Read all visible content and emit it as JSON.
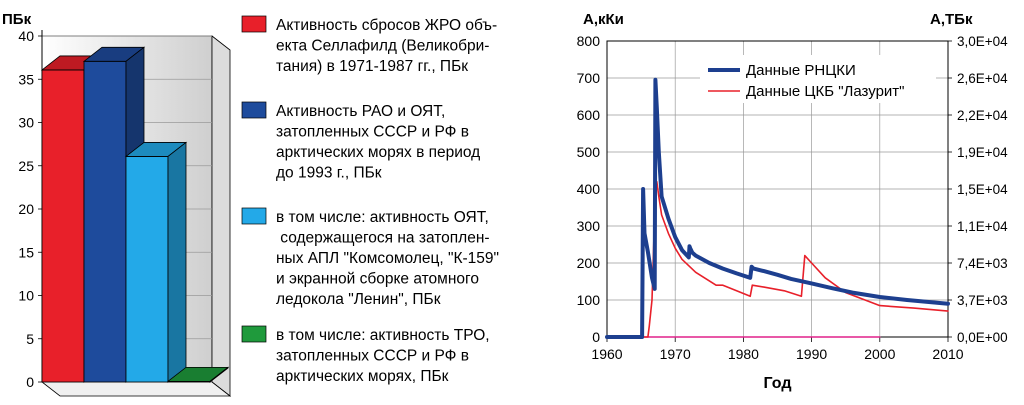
{
  "chart_data": [
    {
      "type": "bar",
      "ylabel": "ПБк",
      "ylim": [
        0,
        40
      ],
      "yticks": [
        0,
        5,
        10,
        15,
        20,
        25,
        30,
        35,
        40
      ],
      "grid": true,
      "legend_position": "right",
      "bars": [
        {
          "value": 37,
          "color": "#e8202a",
          "legend": "Активность сбросов ЖРО объ-\nекта Селлафилд (Великобри-\nтания) в 1971-1987 гг., ПБк"
        },
        {
          "value": 38,
          "color": "#1e4b9c",
          "legend": "Активность РАО и ОЯТ,\nзатопленных  СССР и РФ в\nарктических морях в период\nдо 1993 г., ПБк"
        },
        {
          "value": 27,
          "color": "#23a9e8",
          "legend": "в том числе: активность ОЯТ,\n содержащегося на затоплен-\nных АПЛ \"Комсомолец, \"К-159\"\nи экранной сборке атомного\nледокола \"Ленин\", ПБк"
        },
        {
          "value": 1,
          "color": "#1f9a3c",
          "legend": "в том числе: активность ТРО,\nзатопленных СССР и РФ в\nарктических морях, ПБк"
        }
      ]
    },
    {
      "type": "line",
      "ylabel": "А,кКи",
      "y2label": "А,ТБк",
      "xlabel": "Год",
      "xlim": [
        1960,
        2010
      ],
      "xticks": [
        1960,
        1970,
        1980,
        1990,
        2000,
        2010
      ],
      "ylim": [
        0,
        800
      ],
      "yticks": [
        0,
        100,
        200,
        300,
        400,
        500,
        600,
        700,
        800
      ],
      "y2ticks": [
        "0,0E+00",
        "3,7E+03",
        "7,4E+03",
        "1,1E+04",
        "1,5E+04",
        "1,9E+04",
        "2,2E+04",
        "2,6E+04",
        "3,0E+04"
      ],
      "grid": true,
      "legend_position": "top-right",
      "series": [
        {
          "name": "Данные  РНЦКИ",
          "color": "#1d3f8f",
          "x": [
            1960,
            1965,
            1965.15,
            1965.3,
            1965.5,
            1966,
            1966.6,
            1967,
            1967.1,
            1967.3,
            1967.6,
            1968,
            1969,
            1970,
            1971,
            1972,
            1972.1,
            1972.2,
            1972.5,
            1973,
            1975,
            1977,
            1979,
            1981,
            1981.2,
            1981.5,
            1983,
            1985,
            1987,
            1990,
            1993,
            1996,
            2000,
            2004,
            2007,
            2010
          ],
          "y": [
            0,
            0,
            0,
            400,
            280,
            230,
            160,
            130,
            695,
            620,
            500,
            380,
            320,
            270,
            235,
            215,
            245,
            240,
            228,
            220,
            200,
            185,
            172,
            160,
            190,
            185,
            178,
            168,
            157,
            145,
            132,
            120,
            108,
            100,
            95,
            90
          ]
        },
        {
          "name": "Данные ЦКБ \"Лазурит\"",
          "color": "#e8202a",
          "x": [
            1960,
            1966,
            1966.2,
            1966.6,
            1967.1,
            1967.3,
            1967.6,
            1968,
            1969,
            1970,
            1971,
            1973,
            1976,
            1977,
            1979,
            1981,
            1981.3,
            1983,
            1986,
            1988.5,
            1989,
            1990,
            1992,
            1995,
            2000,
            2005,
            2010
          ],
          "y": [
            0,
            0,
            30,
            100,
            400,
            420,
            380,
            330,
            280,
            240,
            210,
            175,
            140,
            140,
            125,
            110,
            140,
            135,
            125,
            110,
            220,
            200,
            160,
            120,
            85,
            78,
            70
          ]
        },
        {
          "name": "",
          "color": "#e0208a",
          "x": [
            1960,
            2000
          ],
          "y": [
            0,
            0
          ]
        }
      ]
    }
  ]
}
